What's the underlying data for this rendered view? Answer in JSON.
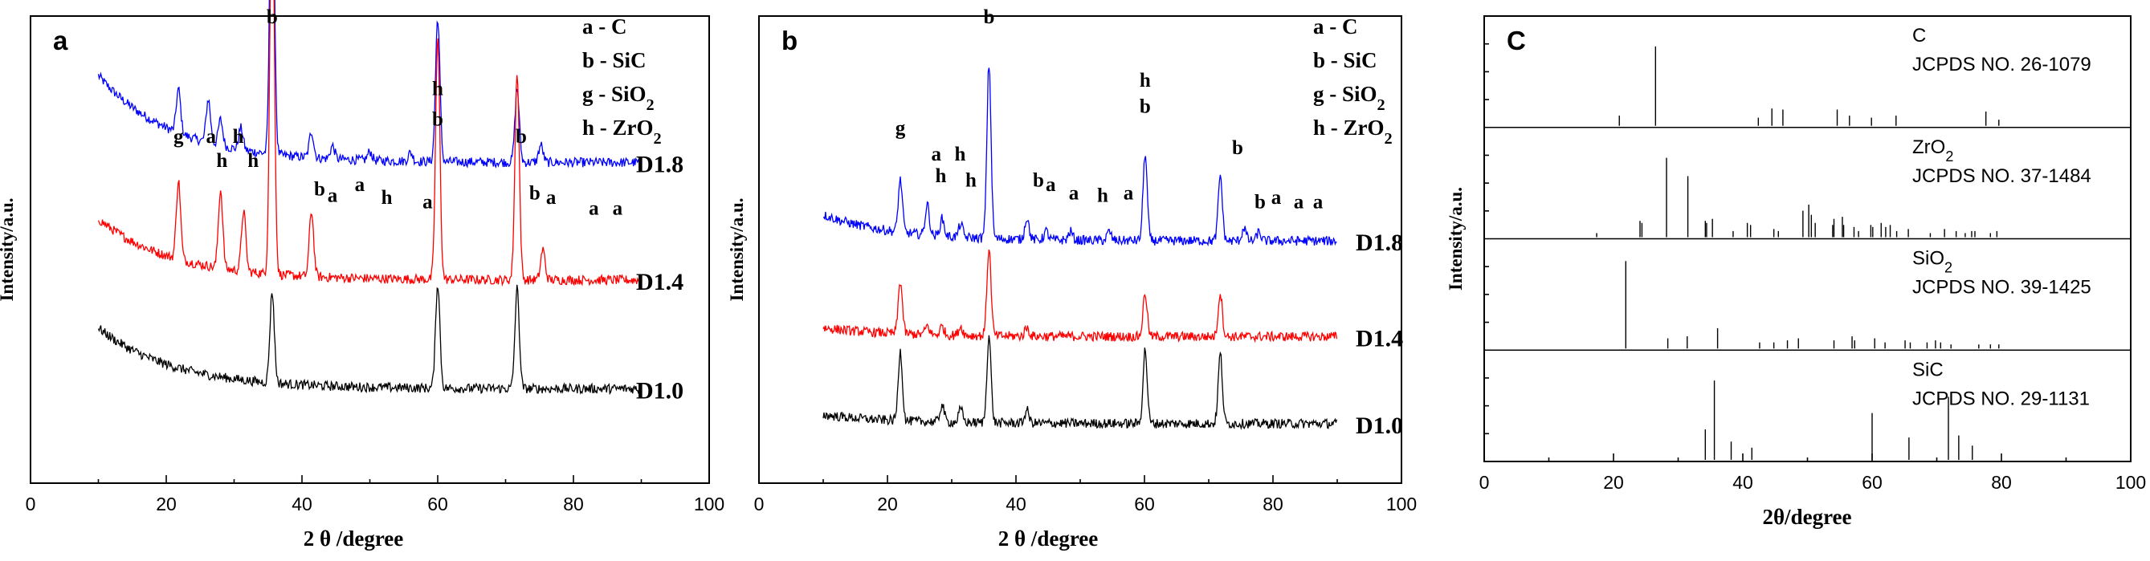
{
  "chart_data": [
    {
      "type": "line",
      "panel_label": "a",
      "xlabel": "2 θ /degree",
      "ylabel": "Intensity/a.u.",
      "xlim": [
        0,
        100
      ],
      "xticks": [
        0,
        20,
        40,
        60,
        80,
        100
      ],
      "legend": [
        "a - C",
        "b - SiC",
        "g - SiO₂",
        "h - ZrO₂"
      ],
      "legend_position": "top-right",
      "series": [
        {
          "name": "D1.8",
          "color": "#0000ff",
          "level": 0.7,
          "decay": 0.2,
          "peaks": [
            [
              21.8,
              0.1
            ],
            [
              26.2,
              0.1
            ],
            [
              28.0,
              0.06
            ],
            [
              31.0,
              0.05
            ],
            [
              35.6,
              0.78
            ],
            [
              41.4,
              0.06
            ],
            [
              44.5,
              0.03
            ],
            [
              50.0,
              0.02
            ],
            [
              56.0,
              0.02
            ],
            [
              60.0,
              0.33
            ],
            [
              71.7,
              0.17
            ],
            [
              75.2,
              0.04
            ]
          ]
        },
        {
          "name": "D1.4",
          "color": "#ff0000",
          "level": 0.43,
          "decay": 0.14,
          "peaks": [
            [
              21.8,
              0.18
            ],
            [
              28.0,
              0.18
            ],
            [
              31.4,
              0.14
            ],
            [
              35.6,
              0.95
            ],
            [
              41.4,
              0.15
            ],
            [
              60.0,
              0.55
            ],
            [
              71.7,
              0.48
            ],
            [
              75.5,
              0.07
            ]
          ]
        },
        {
          "name": "D1.0",
          "color": "#000000",
          "level": 0.18,
          "decay": 0.14,
          "peaks": [
            [
              35.6,
              0.21
            ],
            [
              60.0,
              0.24
            ],
            [
              71.7,
              0.23
            ]
          ]
        }
      ],
      "annotations": [
        {
          "text": "g",
          "x": 21.8,
          "y": 0.745
        },
        {
          "text": "a",
          "x": 26.6,
          "y": 0.745
        },
        {
          "text": "h",
          "x": 28.2,
          "y": 0.69
        },
        {
          "text": "h",
          "x": 30.6,
          "y": 0.745
        },
        {
          "text": "h",
          "x": 32.8,
          "y": 0.69
        },
        {
          "text": "b",
          "x": 35.6,
          "y": 1.02
        },
        {
          "text": "b",
          "x": 42.6,
          "y": 0.625
        },
        {
          "text": "a",
          "x": 44.5,
          "y": 0.61
        },
        {
          "text": "a",
          "x": 48.5,
          "y": 0.635
        },
        {
          "text": "h",
          "x": 52.5,
          "y": 0.605
        },
        {
          "text": "a",
          "x": 58.5,
          "y": 0.595
        },
        {
          "text": "h",
          "x": 60.0,
          "y": 0.855
        },
        {
          "text": "b",
          "x": 60.0,
          "y": 0.785
        },
        {
          "text": "b",
          "x": 72.3,
          "y": 0.745
        },
        {
          "text": "b",
          "x": 74.3,
          "y": 0.615
        },
        {
          "text": "a",
          "x": 76.7,
          "y": 0.605
        },
        {
          "text": "a",
          "x": 83.0,
          "y": 0.58
        },
        {
          "text": "a",
          "x": 86.5,
          "y": 0.58
        }
      ]
    },
    {
      "type": "line",
      "panel_label": "b",
      "xlabel": "2 θ /degree",
      "ylabel": "Intensity/a.u.",
      "xlim": [
        0,
        100
      ],
      "xticks": [
        0,
        20,
        40,
        60,
        80,
        100
      ],
      "legend": [
        "a - C",
        "b - SiC",
        "g - SiO₂",
        "h - ZrO₂"
      ],
      "legend_position": "top-right",
      "series": [
        {
          "name": "D1.8",
          "color": "#0000ff",
          "level": 0.52,
          "decay": 0.06,
          "peaks": [
            [
              22.0,
              0.12
            ],
            [
              26.2,
              0.07
            ],
            [
              28.5,
              0.04
            ],
            [
              31.4,
              0.03
            ],
            [
              35.8,
              0.4
            ],
            [
              41.7,
              0.05
            ],
            [
              44.7,
              0.02
            ],
            [
              48.5,
              0.02
            ],
            [
              54.5,
              0.02
            ],
            [
              60.1,
              0.2
            ],
            [
              71.8,
              0.15
            ],
            [
              75.5,
              0.03
            ],
            [
              77.8,
              0.02
            ]
          ]
        },
        {
          "name": "D1.4",
          "color": "#ff0000",
          "level": 0.3,
          "decay": 0.02,
          "peaks": [
            [
              22.0,
              0.12
            ],
            [
              26.2,
              0.02
            ],
            [
              28.5,
              0.02
            ],
            [
              31.4,
              0.02
            ],
            [
              35.8,
              0.2
            ],
            [
              41.7,
              0.02
            ],
            [
              60.1,
              0.1
            ],
            [
              71.8,
              0.1
            ]
          ]
        },
        {
          "name": "D1.0",
          "color": "#000000",
          "level": 0.1,
          "decay": 0.02,
          "peaks": [
            [
              22.0,
              0.16
            ],
            [
              28.5,
              0.04
            ],
            [
              31.4,
              0.03
            ],
            [
              35.8,
              0.2
            ],
            [
              41.7,
              0.03
            ],
            [
              60.1,
              0.17
            ],
            [
              71.8,
              0.16
            ]
          ]
        }
      ],
      "annotations": [
        {
          "text": "g",
          "x": 22.0,
          "y": 0.765
        },
        {
          "text": "a",
          "x": 27.6,
          "y": 0.705
        },
        {
          "text": "h",
          "x": 28.3,
          "y": 0.655
        },
        {
          "text": "h",
          "x": 31.3,
          "y": 0.705
        },
        {
          "text": "h",
          "x": 33.0,
          "y": 0.645
        },
        {
          "text": "b",
          "x": 35.8,
          "y": 1.02
        },
        {
          "text": "b",
          "x": 43.5,
          "y": 0.645
        },
        {
          "text": "a",
          "x": 45.4,
          "y": 0.635
        },
        {
          "text": "a",
          "x": 49.0,
          "y": 0.615
        },
        {
          "text": "h",
          "x": 53.5,
          "y": 0.61
        },
        {
          "text": "a",
          "x": 57.5,
          "y": 0.615
        },
        {
          "text": "h",
          "x": 60.1,
          "y": 0.875
        },
        {
          "text": "b",
          "x": 60.1,
          "y": 0.815
        },
        {
          "text": "b",
          "x": 74.5,
          "y": 0.72
        },
        {
          "text": "b",
          "x": 78.0,
          "y": 0.595
        },
        {
          "text": "a",
          "x": 80.5,
          "y": 0.605
        },
        {
          "text": "a",
          "x": 84.0,
          "y": 0.595
        },
        {
          "text": "a",
          "x": 87.0,
          "y": 0.595
        }
      ]
    },
    {
      "type": "bar",
      "panel_label": "C",
      "xlabel": "2θ/degree",
      "ylabel": "Intensity/a.u.",
      "xlim": [
        0,
        100
      ],
      "xticks": [
        0,
        20,
        40,
        60,
        80,
        100
      ],
      "references": [
        {
          "phase": "C",
          "card": "JCPDS NO. 26-1079",
          "lines": [
            [
              26.5,
              0.78
            ],
            [
              20.9,
              0.1
            ],
            [
              42.4,
              0.08
            ],
            [
              44.5,
              0.17
            ],
            [
              46.2,
              0.16
            ],
            [
              54.6,
              0.16
            ],
            [
              56.5,
              0.1
            ],
            [
              59.9,
              0.08
            ],
            [
              63.7,
              0.1
            ],
            [
              77.6,
              0.14
            ],
            [
              79.6,
              0.06
            ]
          ]
        },
        {
          "phase": "ZrO₂",
          "card": "JCPDS NO. 37-1484",
          "lines": [
            [
              17.4,
              0.04
            ],
            [
              24.1,
              0.16
            ],
            [
              24.4,
              0.14
            ],
            [
              28.2,
              0.78
            ],
            [
              31.5,
              0.6
            ],
            [
              34.2,
              0.16
            ],
            [
              34.4,
              0.14
            ],
            [
              35.3,
              0.18
            ],
            [
              38.5,
              0.06
            ],
            [
              40.7,
              0.14
            ],
            [
              41.2,
              0.12
            ],
            [
              44.8,
              0.08
            ],
            [
              45.5,
              0.06
            ],
            [
              49.3,
              0.26
            ],
            [
              50.2,
              0.32
            ],
            [
              50.6,
              0.22
            ],
            [
              51.2,
              0.14
            ],
            [
              53.9,
              0.12
            ],
            [
              54.1,
              0.18
            ],
            [
              55.4,
              0.2
            ],
            [
              55.6,
              0.12
            ],
            [
              57.2,
              0.1
            ],
            [
              57.9,
              0.06
            ],
            [
              59.8,
              0.12
            ],
            [
              60.1,
              0.1
            ],
            [
              61.4,
              0.14
            ],
            [
              62.1,
              0.1
            ],
            [
              62.8,
              0.12
            ],
            [
              63.8,
              0.06
            ],
            [
              65.6,
              0.08
            ],
            [
              69.0,
              0.04
            ],
            [
              71.2,
              0.08
            ],
            [
              73.0,
              0.06
            ],
            [
              74.4,
              0.04
            ],
            [
              75.4,
              0.06
            ],
            [
              75.9,
              0.06
            ],
            [
              78.3,
              0.04
            ],
            [
              79.3,
              0.06
            ]
          ]
        },
        {
          "phase": "SiO₂",
          "card": "JCPDS NO. 39-1425",
          "lines": [
            [
              21.9,
              0.86
            ],
            [
              28.4,
              0.1
            ],
            [
              31.4,
              0.12
            ],
            [
              36.1,
              0.2
            ],
            [
              42.6,
              0.06
            ],
            [
              44.8,
              0.06
            ],
            [
              46.9,
              0.08
            ],
            [
              48.6,
              0.1
            ],
            [
              54.1,
              0.08
            ],
            [
              56.9,
              0.12
            ],
            [
              57.3,
              0.08
            ],
            [
              60.4,
              0.1
            ],
            [
              62.0,
              0.06
            ],
            [
              65.1,
              0.08
            ],
            [
              65.9,
              0.06
            ],
            [
              68.5,
              0.06
            ],
            [
              69.8,
              0.08
            ],
            [
              70.6,
              0.06
            ],
            [
              72.2,
              0.04
            ],
            [
              76.5,
              0.04
            ],
            [
              78.3,
              0.04
            ],
            [
              79.6,
              0.04
            ]
          ]
        },
        {
          "phase": "SiC",
          "card": "JCPDS NO. 29-1131",
          "lines": [
            [
              34.2,
              0.3
            ],
            [
              35.6,
              0.78
            ],
            [
              38.2,
              0.18
            ],
            [
              41.4,
              0.12
            ],
            [
              60.0,
              0.46
            ],
            [
              65.7,
              0.22
            ],
            [
              71.8,
              0.62
            ],
            [
              73.4,
              0.24
            ],
            [
              75.5,
              0.14
            ]
          ]
        }
      ]
    }
  ]
}
